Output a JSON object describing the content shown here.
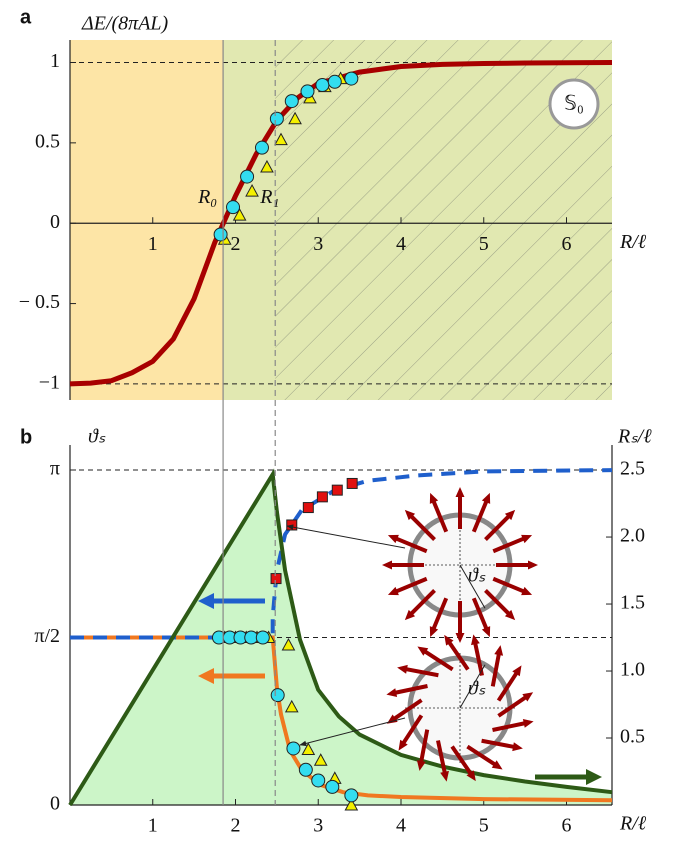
{
  "chart_data": [
    {
      "type": "line",
      "panel_label": "a",
      "ylabel": "ΔE/(8πAL)",
      "xlabel": "R/ℓ",
      "badge": "𝕊₀",
      "xlim": [
        0,
        6.55
      ],
      "ylim": [
        -1.1,
        1.14
      ],
      "xticks": [
        1,
        2,
        3,
        4,
        5,
        6
      ],
      "yticks": [
        {
          "value": -1,
          "label": "−1"
        },
        {
          "value": -0.5,
          "label": "− 0.5"
        },
        0,
        0.5,
        1
      ],
      "hlines": [
        -1,
        1
      ],
      "vlines": [
        {
          "label": "R₀",
          "value": 1.85,
          "style": "solid"
        },
        {
          "label": "R₁",
          "value": 2.48,
          "style": "dashed"
        }
      ],
      "region_colors": [
        "#fde5a6",
        "#e1e8b1"
      ],
      "hatch_from": 2.48,
      "curve": {
        "color": "#a80000",
        "x": [
          0,
          0.25,
          0.5,
          0.75,
          1,
          1.25,
          1.5,
          1.75,
          2,
          2.25,
          2.5,
          2.75,
          3,
          3.5,
          4,
          4.5,
          5,
          5.5,
          6,
          6.55
        ],
        "values": [
          -1,
          -0.995,
          -0.98,
          -0.93,
          -0.86,
          -0.72,
          -0.47,
          -0.12,
          0.17,
          0.43,
          0.64,
          0.78,
          0.87,
          0.94,
          0.975,
          0.988,
          0.994,
          0.997,
          0.999,
          1
        ]
      },
      "circles": {
        "color": "#33ddf0",
        "x": [
          1.82,
          1.97,
          2.14,
          2.32,
          2.5,
          2.68,
          2.87,
          3.05,
          3.2,
          3.4
        ],
        "values": [
          -0.07,
          0.1,
          0.29,
          0.47,
          0.65,
          0.76,
          0.82,
          0.86,
          0.88,
          0.9
        ]
      },
      "triangles": {
        "color": "#f4f000",
        "x": [
          1.87,
          2.05,
          2.2,
          2.38,
          2.55,
          2.72,
          2.9,
          3.08,
          3.27
        ],
        "values": [
          -0.1,
          0.05,
          0.2,
          0.35,
          0.52,
          0.65,
          0.78,
          0.85,
          0.9
        ]
      }
    },
    {
      "type": "line",
      "panel_label": "b",
      "ylabel": "ϑₛ",
      "y2label": "Rₛ/ℓ",
      "xlabel": "R/ℓ",
      "inset_labels": [
        "ϑₛ",
        "ϑₛ"
      ],
      "xlim": [
        0,
        6.55
      ],
      "ylim": [
        0,
        3.376
      ],
      "y2lim": [
        0,
        2.687
      ],
      "xticks": [
        1,
        2,
        3,
        4,
        5,
        6
      ],
      "yticks": [
        0,
        {
          "value": 1.5708,
          "label": "π/2"
        },
        {
          "value": 3.1416,
          "label": "π"
        }
      ],
      "y2ticks": [
        0.5,
        {
          "value": 1,
          "label": "1.0"
        },
        1.5,
        {
          "value": 2,
          "label": "2.0"
        },
        2.5
      ],
      "hlines": [
        1.5708,
        3.1416
      ],
      "boundary": {
        "color": "#2d5a16",
        "fill": "#ccf5c8",
        "x": [
          0,
          2.45,
          2.5,
          2.6,
          2.78,
          3,
          3.25,
          3.5,
          4,
          4.5,
          5,
          5.5,
          6,
          6.55
        ],
        "values": [
          0,
          3.1,
          2.75,
          2.2,
          1.55,
          1.08,
          0.83,
          0.66,
          0.47,
          0.36,
          0.28,
          0.22,
          0.17,
          0.12
        ]
      },
      "orange": {
        "color": "#f07820",
        "x": [
          0,
          2.45,
          2.5,
          2.55,
          2.66,
          2.8,
          3.02,
          3.3,
          3.6,
          4,
          5,
          6.55
        ],
        "values": [
          1.5708,
          1.5708,
          1.1,
          0.85,
          0.51,
          0.33,
          0.19,
          0.12,
          0.09,
          0.075,
          0.055,
          0.045
        ]
      },
      "blue": {
        "color": "#1f5fcc",
        "axis": "y2",
        "x": [
          0,
          2.45,
          2.45,
          2.47,
          2.5,
          2.6,
          2.8,
          3.2,
          3.6,
          4.2,
          5,
          6.55
        ],
        "values": [
          1.25,
          1.25,
          1.4,
          1.55,
          1.75,
          2.02,
          2.2,
          2.35,
          2.42,
          2.46,
          2.49,
          2.5
        ]
      },
      "squares": {
        "color": "#e01010",
        "axis": "y2",
        "x": [
          2.49,
          2.68,
          2.88,
          3.05,
          3.23,
          3.41
        ],
        "values": [
          1.69,
          2.09,
          2.22,
          2.3,
          2.35,
          2.4
        ]
      },
      "circles": {
        "color": "#33ddf0",
        "x": [
          1.8,
          1.93,
          2.06,
          2.19,
          2.33,
          2.51,
          2.7,
          2.85,
          3.0,
          3.17,
          3.4
        ],
        "values": [
          1.5708,
          1.5708,
          1.5708,
          1.5708,
          1.5708,
          1.03,
          0.53,
          0.33,
          0.23,
          0.17,
          0.09
        ]
      },
      "triangles": {
        "color": "#f4f000",
        "x": [
          1.87,
          2.0,
          2.13,
          2.26,
          2.4,
          2.64,
          2.68,
          2.88,
          3.03,
          3.2,
          3.4
        ],
        "values": [
          1.5708,
          1.5708,
          1.5708,
          1.5708,
          1.5708,
          1.5,
          0.92,
          0.52,
          0.42,
          0.25,
          0.0
        ]
      }
    }
  ]
}
